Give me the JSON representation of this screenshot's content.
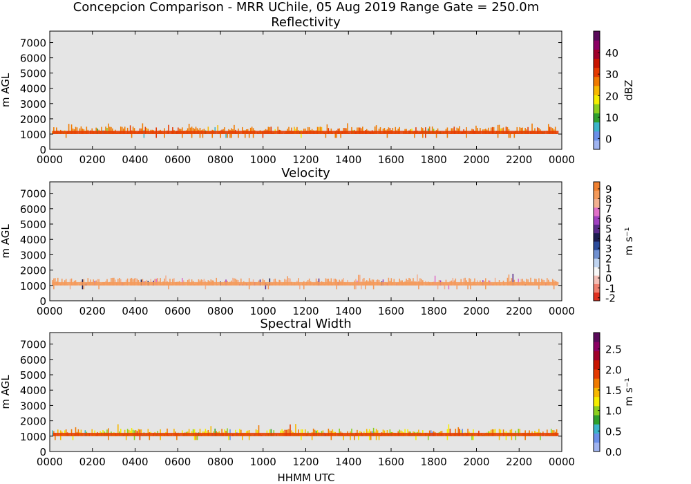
{
  "figure": {
    "title": "Concepcion Comparison - MRR UChile, 05 Aug 2019 Range Gate = 250.0m",
    "xlabel": "HHMM UTC"
  },
  "colors": {
    "background": "#e5e5e5",
    "frame": "#000000"
  },
  "chart_data": [
    {
      "type": "heatmap",
      "title": "Reflectivity",
      "ylabel": "m AGL",
      "x_ticks": [
        "0000",
        "0200",
        "0400",
        "0600",
        "0800",
        "1000",
        "1200",
        "1400",
        "1600",
        "1800",
        "2000",
        "2200",
        "0000"
      ],
      "y_ticks": [
        "0",
        "1000",
        "2000",
        "3000",
        "4000",
        "5000",
        "6000",
        "7000"
      ],
      "xlim_hours": [
        0,
        24
      ],
      "ylim": [
        0,
        7750
      ],
      "colorbar": {
        "label": "dBZ",
        "ticks": [
          "0",
          "10",
          "20",
          "30",
          "40"
        ],
        "tick_values": [
          0,
          10,
          20,
          30,
          40
        ],
        "range": [
          -5,
          50
        ],
        "colors": [
          "#a0b4f0",
          "#6a8fe8",
          "#3cb4c8",
          "#2ea02c",
          "#8ccf1e",
          "#f5ee00",
          "#f7b800",
          "#f07a00",
          "#e53a00",
          "#c81400",
          "#a0002a",
          "#8c0064",
          "#5a0a5a"
        ]
      },
      "band": {
        "base_m": 1000,
        "top_m": 1500,
        "typical_value": 29,
        "value_min": 5,
        "value_max": 33
      }
    },
    {
      "type": "heatmap",
      "title": "Velocity",
      "ylabel": "m AGL",
      "x_ticks": [
        "0000",
        "0200",
        "0400",
        "0600",
        "0800",
        "1000",
        "1200",
        "1400",
        "1600",
        "1800",
        "2000",
        "2200",
        "0000"
      ],
      "y_ticks": [
        "0",
        "1000",
        "2000",
        "3000",
        "4000",
        "5000",
        "6000",
        "7000"
      ],
      "xlim_hours": [
        0,
        24
      ],
      "ylim": [
        0,
        7750
      ],
      "colorbar": {
        "label": "m s⁻¹",
        "ticks": [
          "9",
          "8",
          "7",
          "6",
          "5",
          "4",
          "3",
          "2",
          "1",
          "0",
          "-1",
          "-2"
        ],
        "tick_values": [
          9,
          8,
          7,
          6,
          5,
          4,
          3,
          2,
          1,
          0,
          -1,
          -2
        ],
        "range": [
          -2.3,
          9.7
        ],
        "colors": [
          "#e03020",
          "#f08070",
          "#f4c0b8",
          "#f8f8f8",
          "#c0d4f0",
          "#7090d0",
          "#2c4c9c",
          "#1c1c50",
          "#5a2a8a",
          "#a040c0",
          "#e070c8",
          "#f2b090",
          "#f49a5a",
          "#f08030"
        ]
      },
      "band": {
        "base_m": 1000,
        "top_m": 1500,
        "typical_value": 8.6,
        "value_min": 4,
        "value_max": 9
      }
    },
    {
      "type": "heatmap",
      "title": "Spectral Width",
      "ylabel": "m AGL",
      "x_ticks": [
        "0000",
        "0200",
        "0400",
        "0600",
        "0800",
        "1000",
        "1200",
        "1400",
        "1600",
        "1800",
        "2000",
        "2200",
        "0000"
      ],
      "y_ticks": [
        "0",
        "1000",
        "2000",
        "3000",
        "4000",
        "5000",
        "6000",
        "7000"
      ],
      "xlim_hours": [
        0,
        24
      ],
      "ylim": [
        0,
        7750
      ],
      "colorbar": {
        "label": "m s⁻¹",
        "ticks": [
          "0.0",
          "0.5",
          "1.0",
          "1.5",
          "2.0",
          "2.5"
        ],
        "tick_values": [
          0.0,
          0.5,
          1.0,
          1.5,
          2.0,
          2.5
        ],
        "range": [
          0.0,
          2.9
        ],
        "colors": [
          "#a0b4f0",
          "#6a8fe8",
          "#3cb4c8",
          "#2ea02c",
          "#8ccf1e",
          "#f5ee00",
          "#f7b800",
          "#f07a00",
          "#e53a00",
          "#c81400",
          "#a0002a",
          "#8c0064",
          "#5a0a5a"
        ]
      },
      "band": {
        "base_m": 1000,
        "top_m": 1500,
        "typical_value": 1.8,
        "value_min": 0.3,
        "value_max": 2.0
      }
    }
  ]
}
